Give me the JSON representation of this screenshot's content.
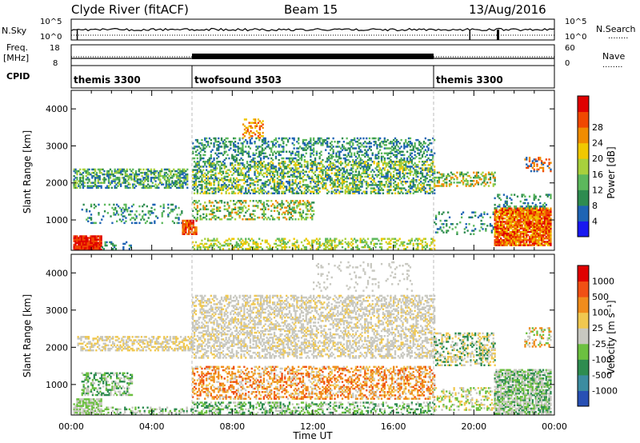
{
  "header": {
    "site": "Clyde River (fitACF)",
    "beam": "Beam 15",
    "date": "13/Aug/2016"
  },
  "panels": {
    "nsky_label": "N.Sky",
    "nsearch_label": "N.Search",
    "freq_label_top": "Freq.",
    "freq_label_bottom": "[MHz]",
    "nave_label": "Nave",
    "cpid_label": "CPID",
    "nsky_ticks": [
      "10^5",
      "10^0"
    ],
    "nsearch_ticks": [
      "10^5",
      "10^0"
    ],
    "freq_ticks": [
      "18",
      "8"
    ],
    "nave_ticks": [
      "60",
      "0"
    ],
    "dotted_marker": "........",
    "cpid_entries": [
      {
        "label": "themis 3300",
        "start_hour": 0
      },
      {
        "label": "twofsound 3503",
        "start_hour": 6
      },
      {
        "label": "themis 3300",
        "start_hour": 18
      }
    ]
  },
  "chart_data": [
    {
      "type": "heatmap",
      "name": "power",
      "ylabel": "Slant Range [km]",
      "xlim": [
        0,
        24
      ],
      "ylim": [
        180,
        4500
      ],
      "yticks": [
        1000,
        2000,
        3000,
        4000
      ],
      "colorbar": {
        "label": "Power [dB]",
        "ticks": [
          "4",
          "8",
          "12",
          "16",
          "20",
          "24",
          "28"
        ],
        "colors": [
          "#1818f0",
          "#1e64b4",
          "#2e8c50",
          "#5cb85c",
          "#a8d03c",
          "#f0c800",
          "#f08c00",
          "#f04800",
          "#e00000"
        ]
      }
    },
    {
      "type": "heatmap",
      "name": "velocity",
      "ylabel": "Slant Range [km]",
      "xlabel": "Time UT",
      "xlim": [
        0,
        24
      ],
      "ylim": [
        180,
        4500
      ],
      "yticks": [
        1000,
        2000,
        3000,
        4000
      ],
      "xtick_labels": [
        "00:00",
        "04:00",
        "08:00",
        "12:00",
        "16:00",
        "20:00",
        "00:00"
      ],
      "colorbar": {
        "label": "Velocity [m s⁻¹]",
        "ticks": [
          "1000",
          "500",
          "100",
          "25",
          "-25",
          "-100",
          "-500",
          "-1000"
        ],
        "colors": [
          "#2850b4",
          "#3c8ca0",
          "#2e8c50",
          "#6cc040",
          "#c8c8c0",
          "#f0c850",
          "#f08c1c",
          "#f05014",
          "#e00000"
        ]
      }
    }
  ]
}
